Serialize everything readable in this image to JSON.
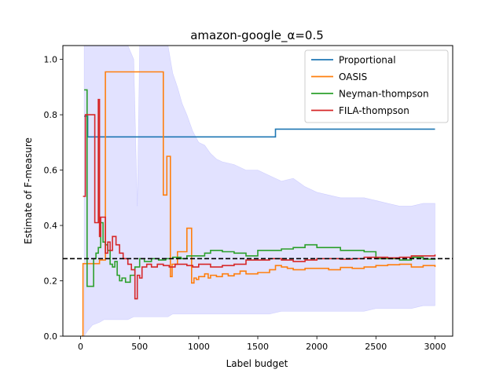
{
  "chart_data": {
    "type": "line",
    "title": "amazon-google_α=0.5",
    "xlabel": "Label budget",
    "ylabel": "Estimate of F-measure",
    "xlim": [
      -150,
      3150
    ],
    "ylim": [
      0.0,
      1.05
    ],
    "xticks": [
      0,
      500,
      1000,
      1500,
      2000,
      2500,
      3000
    ],
    "xtick_labels": [
      "0",
      "500",
      "1000",
      "1500",
      "2000",
      "2500",
      "3000"
    ],
    "yticks": [
      0.0,
      0.2,
      0.4,
      0.6,
      0.8,
      1.0
    ],
    "ytick_labels": [
      "0.0",
      "0.2",
      "0.4",
      "0.6",
      "0.8",
      "1.0"
    ],
    "grid": false,
    "legend_position": "top-right",
    "reference_line": {
      "y": 0.28,
      "style": "dashed",
      "color": "#000000"
    },
    "band": {
      "color": "#7b7bff",
      "x": [
        30,
        60,
        100,
        160,
        200,
        250,
        300,
        350,
        400,
        450,
        480,
        500,
        520,
        560,
        600,
        640,
        680,
        700,
        740,
        780,
        820,
        860,
        900,
        950,
        1000,
        1050,
        1100,
        1150,
        1200,
        1300,
        1400,
        1500,
        1600,
        1700,
        1800,
        1900,
        2000,
        2100,
        2200,
        2300,
        2400,
        2500,
        2600,
        2700,
        2800,
        2900,
        3000
      ],
      "upper": [
        1.05,
        1.05,
        1.05,
        1.05,
        1.05,
        1.05,
        1.05,
        1.05,
        1.05,
        1.0,
        0.47,
        1.05,
        1.05,
        1.05,
        1.05,
        1.05,
        1.05,
        1.05,
        1.05,
        0.95,
        0.9,
        0.84,
        0.8,
        0.74,
        0.7,
        0.69,
        0.66,
        0.64,
        0.63,
        0.62,
        0.6,
        0.6,
        0.58,
        0.56,
        0.57,
        0.54,
        0.52,
        0.51,
        0.5,
        0.5,
        0.5,
        0.49,
        0.48,
        0.47,
        0.47,
        0.48,
        0.48
      ],
      "lower": [
        0.0,
        0.02,
        0.04,
        0.05,
        0.06,
        0.06,
        0.06,
        0.06,
        0.06,
        0.07,
        0.07,
        0.07,
        0.07,
        0.07,
        0.07,
        0.07,
        0.07,
        0.07,
        0.07,
        0.08,
        0.08,
        0.08,
        0.08,
        0.08,
        0.08,
        0.08,
        0.08,
        0.08,
        0.08,
        0.08,
        0.08,
        0.08,
        0.08,
        0.09,
        0.09,
        0.09,
        0.09,
        0.09,
        0.09,
        0.09,
        0.09,
        0.1,
        0.1,
        0.1,
        0.1,
        0.11,
        0.11
      ]
    },
    "series": [
      {
        "name": "Proportional",
        "color": "#1f77b4",
        "step": true,
        "x": [
          30,
          60,
          1640,
          1650,
          3000
        ],
        "y": [
          0.795,
          0.72,
          0.72,
          0.748,
          0.748
        ]
      },
      {
        "name": "OASIS",
        "color": "#ff7f0e",
        "step": true,
        "x": [
          10,
          20,
          60,
          160,
          210,
          700,
          730,
          760,
          775,
          820,
          900,
          940,
          960,
          980,
          1000,
          1050,
          1080,
          1100,
          1150,
          1200,
          1250,
          1300,
          1350,
          1400,
          1500,
          1600,
          1650,
          1700,
          1750,
          1800,
          1900,
          2000,
          2100,
          2200,
          2300,
          2400,
          2500,
          2600,
          2700,
          2800,
          2900,
          3000
        ],
        "y": [
          0.0,
          0.262,
          0.262,
          0.275,
          0.955,
          0.51,
          0.65,
          0.215,
          0.26,
          0.305,
          0.39,
          0.192,
          0.21,
          0.205,
          0.215,
          0.225,
          0.21,
          0.22,
          0.215,
          0.225,
          0.218,
          0.225,
          0.235,
          0.225,
          0.23,
          0.24,
          0.255,
          0.25,
          0.245,
          0.24,
          0.245,
          0.245,
          0.24,
          0.248,
          0.245,
          0.25,
          0.255,
          0.258,
          0.26,
          0.25,
          0.255,
          0.25
        ]
      },
      {
        "name": "Neyman-thompson",
        "color": "#2ca02c",
        "step": true,
        "x": [
          30,
          55,
          80,
          110,
          130,
          150,
          170,
          190,
          210,
          230,
          250,
          270,
          290,
          310,
          330,
          350,
          380,
          420,
          460,
          500,
          540,
          600,
          660,
          720,
          780,
          850,
          900,
          1000,
          1050,
          1100,
          1200,
          1300,
          1400,
          1500,
          1600,
          1700,
          1800,
          1900,
          2000,
          2100,
          2200,
          2300,
          2400,
          2500,
          2600,
          2700,
          2800,
          2900,
          3000
        ],
        "y": [
          0.89,
          0.18,
          0.18,
          0.28,
          0.3,
          0.32,
          0.41,
          0.34,
          0.33,
          0.31,
          0.26,
          0.25,
          0.27,
          0.22,
          0.2,
          0.21,
          0.195,
          0.22,
          0.25,
          0.28,
          0.27,
          0.28,
          0.275,
          0.28,
          0.285,
          0.28,
          0.29,
          0.29,
          0.3,
          0.31,
          0.305,
          0.3,
          0.29,
          0.31,
          0.31,
          0.315,
          0.32,
          0.33,
          0.32,
          0.32,
          0.31,
          0.31,
          0.305,
          0.28,
          0.28,
          0.275,
          0.285,
          0.278,
          0.28
        ]
      },
      {
        "name": "FILA-thompson",
        "color": "#d62728",
        "step": true,
        "x": [
          20,
          40,
          70,
          120,
          150,
          160,
          170,
          190,
          210,
          230,
          250,
          270,
          300,
          330,
          360,
          400,
          430,
          460,
          480,
          500,
          520,
          560,
          600,
          650,
          700,
          750,
          800,
          850,
          900,
          950,
          1000,
          1100,
          1200,
          1300,
          1400,
          1500,
          1600,
          1700,
          1800,
          1900,
          2000,
          2100,
          2200,
          2300,
          2400,
          2500,
          2600,
          2700,
          2800,
          2900,
          3000
        ],
        "y": [
          0.505,
          0.8,
          0.8,
          0.41,
          0.855,
          0.36,
          0.43,
          0.43,
          0.3,
          0.34,
          0.31,
          0.36,
          0.33,
          0.3,
          0.28,
          0.26,
          0.24,
          0.135,
          0.22,
          0.21,
          0.25,
          0.26,
          0.25,
          0.26,
          0.255,
          0.25,
          0.26,
          0.26,
          0.255,
          0.25,
          0.26,
          0.25,
          0.255,
          0.26,
          0.275,
          0.275,
          0.28,
          0.275,
          0.27,
          0.275,
          0.28,
          0.28,
          0.278,
          0.28,
          0.285,
          0.285,
          0.283,
          0.285,
          0.29,
          0.29,
          0.295
        ]
      }
    ]
  }
}
